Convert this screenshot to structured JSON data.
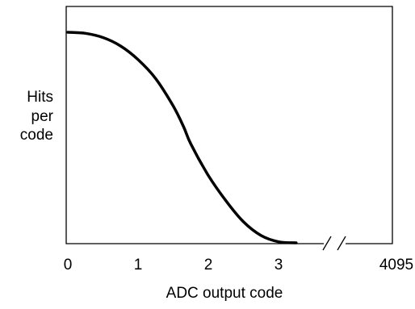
{
  "chart_data": {
    "type": "line",
    "title": "",
    "xlabel": "ADC output code",
    "ylabel": [
      "Hits",
      "per",
      "code"
    ],
    "x_ticks": [
      "0",
      "1",
      "2",
      "3",
      "4095"
    ],
    "x_axis_break": true,
    "grid": false,
    "legend": "none",
    "curve_color": "#000000",
    "series": [
      {
        "x": [
          0,
          0.25,
          0.5,
          0.75,
          1.0,
          1.25,
          1.5,
          1.65,
          1.75,
          2.0,
          2.25,
          2.5,
          2.75,
          3.0,
          3.25
        ],
        "y": [
          1.0,
          0.995,
          0.975,
          0.935,
          0.87,
          0.78,
          0.65,
          0.55,
          0.47,
          0.32,
          0.2,
          0.1,
          0.035,
          0.005,
          0.0
        ]
      }
    ]
  }
}
